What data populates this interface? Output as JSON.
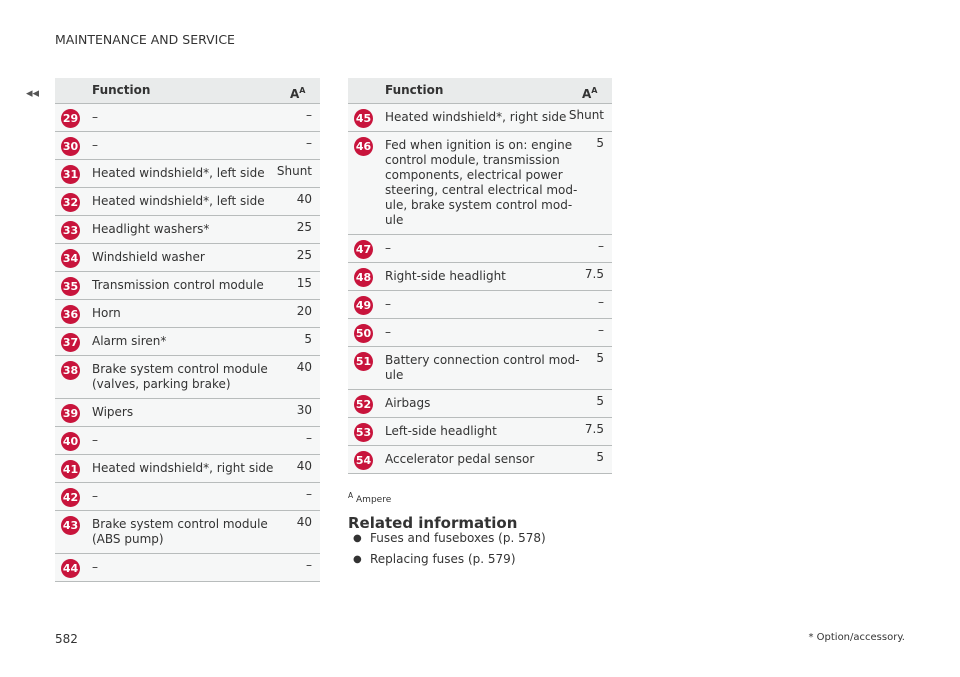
{
  "header": {
    "section": "MAINTENANCE AND SERVICE",
    "nav": "◂◂"
  },
  "table_header": {
    "function": "Function",
    "unit": "A",
    "unit_note": "A"
  },
  "left_table": {
    "rows": [
      {
        "number": "29",
        "function": [
          "–"
        ],
        "value": "–"
      },
      {
        "number": "30",
        "function": [
          "–"
        ],
        "value": "–"
      },
      {
        "number": "31",
        "function": [
          "Heated windshield*, left side"
        ],
        "value": "Shunt"
      },
      {
        "number": "32",
        "function": [
          "Heated windshield*, left side"
        ],
        "value": "40"
      },
      {
        "number": "33",
        "function": [
          "Headlight washers*"
        ],
        "value": "25"
      },
      {
        "number": "34",
        "function": [
          "Windshield washer"
        ],
        "value": "25"
      },
      {
        "number": "35",
        "function": [
          "Transmission control module"
        ],
        "value": "15"
      },
      {
        "number": "36",
        "function": [
          "Horn"
        ],
        "value": "20"
      },
      {
        "number": "37",
        "function": [
          "Alarm siren*"
        ],
        "value": "5"
      },
      {
        "number": "38",
        "function": [
          "Brake system control module",
          "(valves, parking brake)"
        ],
        "value": "40"
      },
      {
        "number": "39",
        "function": [
          "Wipers"
        ],
        "value": "30"
      },
      {
        "number": "40",
        "function": [
          "–"
        ],
        "value": "–"
      },
      {
        "number": "41",
        "function": [
          "Heated windshield*, right side"
        ],
        "value": "40"
      },
      {
        "number": "42",
        "function": [
          "–"
        ],
        "value": "–"
      },
      {
        "number": "43",
        "function": [
          "Brake system control module",
          "(ABS pump)"
        ],
        "value": "40"
      },
      {
        "number": "44",
        "function": [
          "–"
        ],
        "value": "–"
      }
    ]
  },
  "right_table": {
    "rows": [
      {
        "number": "45",
        "function": [
          "Heated windshield*, right side"
        ],
        "value": "Shunt"
      },
      {
        "number": "46",
        "function": [
          "Fed when ignition is on: engine",
          "control module, transmission",
          "components, electrical power",
          "steering, central electrical mod-",
          "ule, brake system control mod-",
          "ule"
        ],
        "value": "5"
      },
      {
        "number": "47",
        "function": [
          "–"
        ],
        "value": "–"
      },
      {
        "number": "48",
        "function": [
          "Right-side headlight"
        ],
        "value": "7.5"
      },
      {
        "number": "49",
        "function": [
          "–"
        ],
        "value": "–"
      },
      {
        "number": "50",
        "function": [
          "–"
        ],
        "value": "–"
      },
      {
        "number": "51",
        "function": [
          "Battery connection control mod-",
          "ule"
        ],
        "value": "5"
      },
      {
        "number": "52",
        "function": [
          "Airbags"
        ],
        "value": "5"
      },
      {
        "number": "53",
        "function": [
          "Left-side headlight"
        ],
        "value": "7.5"
      },
      {
        "number": "54",
        "function": [
          "Accelerator pedal sensor"
        ],
        "value": "5"
      }
    ]
  },
  "footnote": {
    "mark": "A",
    "text": "Ampere"
  },
  "related": {
    "title": "Related information",
    "items": [
      "Fuses and fuseboxes (p. 578)",
      "Replacing fuses (p. 579)"
    ]
  },
  "footer": {
    "page": "582",
    "note": "* Option/accessory."
  }
}
